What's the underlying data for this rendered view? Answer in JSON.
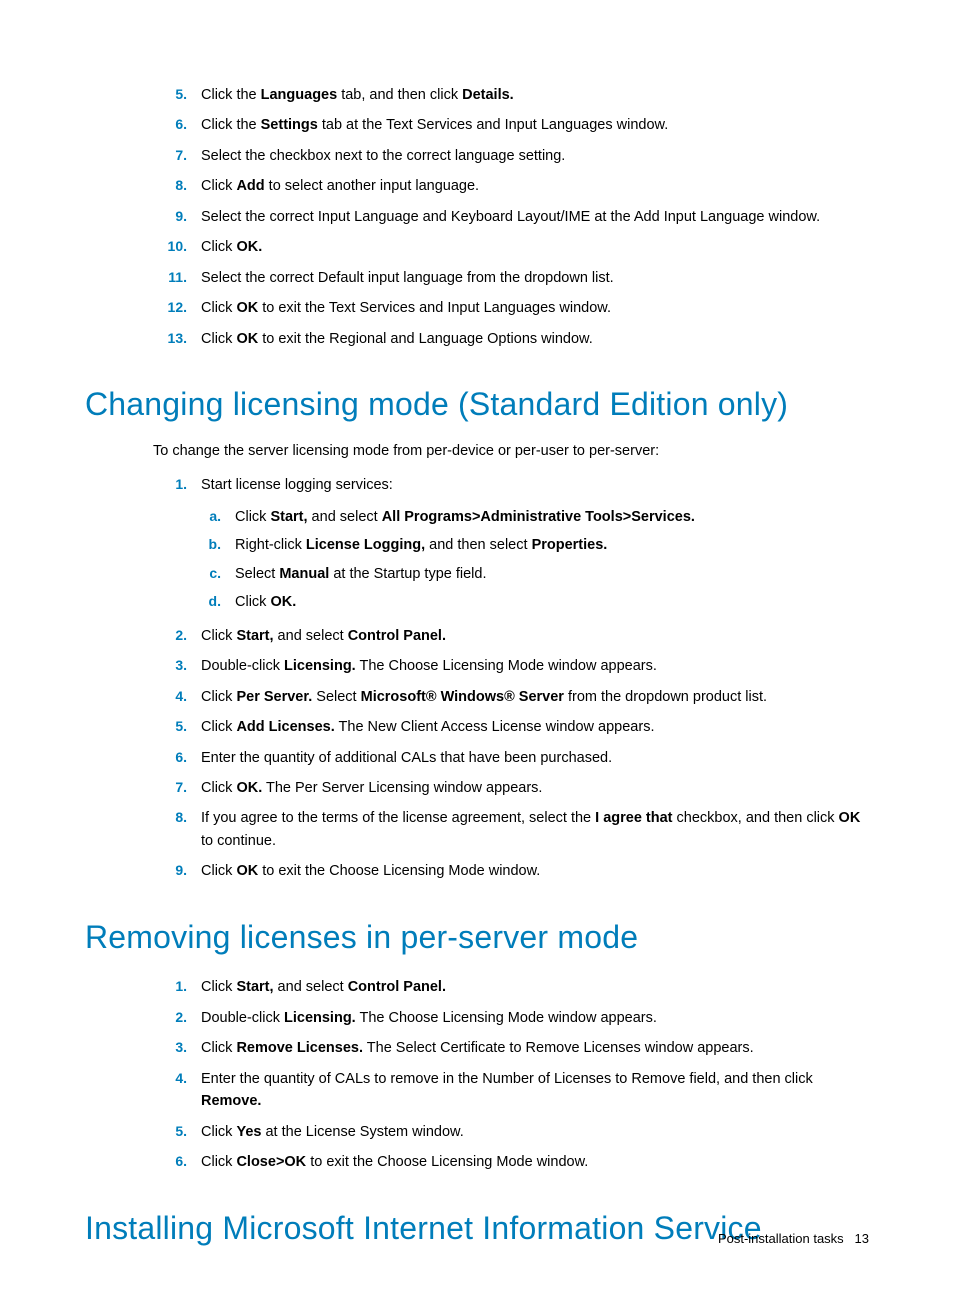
{
  "colors": {
    "accent": "#007dba",
    "text": "#000000",
    "bg": "#ffffff"
  },
  "topList": {
    "items": [
      {
        "n": "5.",
        "parts": [
          "Click the ",
          {
            "b": "Languages"
          },
          " tab, and then click ",
          {
            "b": "Details."
          }
        ]
      },
      {
        "n": "6.",
        "parts": [
          "Click the ",
          {
            "b": "Settings"
          },
          " tab at the Text Services and Input Languages window."
        ]
      },
      {
        "n": "7.",
        "parts": [
          "Select the checkbox next to the correct language setting."
        ]
      },
      {
        "n": "8.",
        "parts": [
          "Click ",
          {
            "b": "Add"
          },
          " to select another input language."
        ]
      },
      {
        "n": "9.",
        "parts": [
          "Select the correct Input Language and Keyboard Layout/IME at the Add Input Language window."
        ]
      },
      {
        "n": "10.",
        "parts": [
          "Click ",
          {
            "b": "OK."
          }
        ]
      },
      {
        "n": "11.",
        "parts": [
          "Select the correct Default input language from the dropdown list."
        ]
      },
      {
        "n": "12.",
        "parts": [
          "Click ",
          {
            "b": "OK"
          },
          " to exit the Text Services and Input Languages window."
        ]
      },
      {
        "n": "13.",
        "parts": [
          "Click ",
          {
            "b": "OK"
          },
          " to exit the Regional and Language Options window."
        ]
      }
    ]
  },
  "section1": {
    "title": "Changing licensing mode (Standard Edition only)",
    "intro": "To change the server licensing mode from per-device or per-user to per-server:",
    "items": [
      {
        "n": "1.",
        "parts": [
          "Start license logging services:"
        ],
        "sub": [
          {
            "n": "a.",
            "parts": [
              "Click ",
              {
                "b": "Start,"
              },
              " and select ",
              {
                "b": "All Programs>Administrative Tools>Services."
              }
            ]
          },
          {
            "n": "b.",
            "parts": [
              "Right-click ",
              {
                "b": "License Logging,"
              },
              " and then select ",
              {
                "b": "Properties."
              }
            ]
          },
          {
            "n": "c.",
            "parts": [
              "Select ",
              {
                "b": "Manual"
              },
              " at the Startup type field."
            ]
          },
          {
            "n": "d.",
            "parts": [
              "Click ",
              {
                "b": "OK."
              }
            ]
          }
        ]
      },
      {
        "n": "2.",
        "parts": [
          "Click ",
          {
            "b": "Start,"
          },
          " and select ",
          {
            "b": "Control Panel."
          }
        ]
      },
      {
        "n": "3.",
        "parts": [
          "Double-click ",
          {
            "b": "Licensing."
          },
          " The Choose Licensing Mode window appears."
        ]
      },
      {
        "n": "4.",
        "parts": [
          "Click ",
          {
            "b": "Per Server."
          },
          " Select ",
          {
            "b": "Microsoft® Windows® Server"
          },
          " from the dropdown product list."
        ]
      },
      {
        "n": "5.",
        "parts": [
          "Click ",
          {
            "b": "Add Licenses."
          },
          " The New Client Access License window appears."
        ]
      },
      {
        "n": "6.",
        "parts": [
          "Enter the quantity of additional CALs that have been purchased."
        ]
      },
      {
        "n": "7.",
        "parts": [
          "Click ",
          {
            "b": "OK."
          },
          " The Per Server Licensing window appears."
        ]
      },
      {
        "n": "8.",
        "parts": [
          "If you agree to the terms of the license agreement, select the ",
          {
            "b": "I agree that"
          },
          " checkbox, and then click ",
          {
            "b": "OK"
          },
          " to continue."
        ]
      },
      {
        "n": "9.",
        "parts": [
          "Click ",
          {
            "b": "OK"
          },
          " to exit the Choose Licensing Mode window."
        ]
      }
    ]
  },
  "section2": {
    "title": "Removing licenses in per-server mode",
    "items": [
      {
        "n": "1.",
        "parts": [
          "Click ",
          {
            "b": "Start,"
          },
          " and select ",
          {
            "b": "Control Panel."
          }
        ]
      },
      {
        "n": "2.",
        "parts": [
          "Double-click ",
          {
            "b": "Licensing."
          },
          " The Choose Licensing Mode window appears."
        ]
      },
      {
        "n": "3.",
        "parts": [
          "Click ",
          {
            "b": "Remove Licenses."
          },
          " The Select Certificate to Remove Licenses window appears."
        ]
      },
      {
        "n": "4.",
        "parts": [
          "Enter the quantity of CALs to remove in the Number of Licenses to Remove field, and then click ",
          {
            "b": "Remove."
          }
        ]
      },
      {
        "n": "5.",
        "parts": [
          "Click ",
          {
            "b": "Yes"
          },
          " at the License System window."
        ]
      },
      {
        "n": "6.",
        "parts": [
          "Click ",
          {
            "b": "Close>OK"
          },
          " to exit the Choose Licensing Mode window."
        ]
      }
    ]
  },
  "section3": {
    "title": "Installing Microsoft Internet Information Service"
  },
  "footer": {
    "label": "Post-installation tasks",
    "page": "13"
  }
}
